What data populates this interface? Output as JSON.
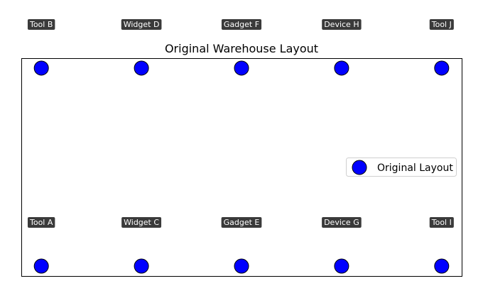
{
  "chart_data": {
    "type": "scatter",
    "title": "Original Warehouse Layout",
    "xlabel": "",
    "ylabel": "",
    "xlim": [
      0,
      8.8
    ],
    "ylim": [
      0,
      2.2
    ],
    "grid": false,
    "axes_ticks_visible": false,
    "legend_position": "right",
    "series": [
      {
        "name": "Original Layout",
        "color": "#0000ff",
        "edge_color": "#000000",
        "points": [
          {
            "label": "Tool A",
            "x": 0.4,
            "y": 0.1
          },
          {
            "label": "Tool B",
            "x": 0.4,
            "y": 2.1
          },
          {
            "label": "Widget C",
            "x": 2.4,
            "y": 0.1
          },
          {
            "label": "Widget D",
            "x": 2.4,
            "y": 2.1
          },
          {
            "label": "Gadget E",
            "x": 4.4,
            "y": 0.1
          },
          {
            "label": "Gadget F",
            "x": 4.4,
            "y": 2.1
          },
          {
            "label": "Device G",
            "x": 6.4,
            "y": 0.1
          },
          {
            "label": "Device H",
            "x": 6.4,
            "y": 2.1
          },
          {
            "label": "Tool I",
            "x": 8.4,
            "y": 0.1
          },
          {
            "label": "Tool J",
            "x": 8.4,
            "y": 2.1
          }
        ]
      }
    ],
    "label_style": {
      "background": "#3a3a3a",
      "text_color": "#ffffff"
    }
  }
}
